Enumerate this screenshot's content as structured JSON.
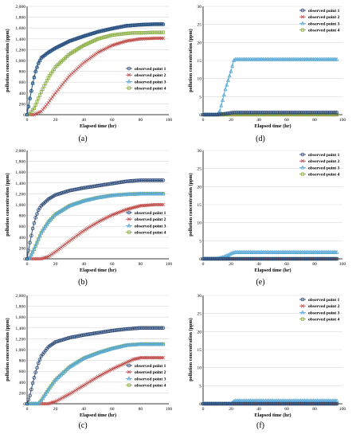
{
  "figure": {
    "shared": {
      "ylabel": "pollution concentration (ppm)",
      "xlabel": "Elapsed time (hr)",
      "legend": [
        "observed point 1",
        "observed point 2",
        "observed point 3",
        "observed point 4"
      ],
      "left_yticks": [
        "0",
        "200",
        "400",
        "600",
        "800",
        "1,000",
        "1,200",
        "1,400",
        "1,600",
        "1,800",
        "2,000"
      ],
      "right_yticks": [
        "0",
        "5",
        "10",
        "15",
        "20",
        "25",
        "30"
      ],
      "xticks": [
        "0",
        "20",
        "40",
        "60",
        "80",
        "100"
      ]
    },
    "colors": {
      "point1": "#2c4a78",
      "point2": "#c0504d",
      "point3": "#5aa9d6",
      "point4": "#8db04a",
      "axis": "#000000",
      "grid": "#d9d9d9"
    }
  },
  "chart_data": [
    {
      "panel": "(a)",
      "type": "line",
      "xlabel": "Elapsed time (hr)",
      "ylabel": "pollution concentration (ppm)",
      "xlim": [
        0,
        100
      ],
      "ylim": [
        0,
        2000
      ],
      "yticks": [
        0,
        200,
        400,
        600,
        800,
        1000,
        1200,
        1400,
        1600,
        1800,
        2000
      ],
      "grid": "horizontal",
      "legend_position": "right-middle",
      "series": [
        {
          "name": "observed point 1",
          "x": [
            0,
            2,
            4,
            6,
            8,
            10,
            15,
            20,
            30,
            40,
            50,
            60,
            70,
            80,
            90,
            96
          ],
          "values": [
            0,
            300,
            580,
            800,
            950,
            1050,
            1150,
            1230,
            1360,
            1450,
            1530,
            1590,
            1640,
            1660,
            1670,
            1670
          ]
        },
        {
          "name": "observed point 2",
          "x": [
            0,
            5,
            10,
            15,
            20,
            30,
            40,
            50,
            60,
            70,
            75,
            80,
            90,
            96
          ],
          "values": [
            0,
            0,
            60,
            220,
            400,
            720,
            960,
            1150,
            1280,
            1360,
            1380,
            1400,
            1410,
            1410
          ]
        },
        {
          "name": "observed point 3",
          "x": [
            0,
            2,
            4,
            6,
            8,
            10,
            15,
            20,
            30,
            40,
            50,
            60,
            70,
            80,
            90,
            96
          ],
          "values": [
            0,
            300,
            580,
            800,
            950,
            1050,
            1150,
            1230,
            1360,
            1450,
            1530,
            1590,
            1640,
            1660,
            1670,
            1670
          ]
        },
        {
          "name": "observed point 4",
          "x": [
            0,
            2,
            5,
            10,
            15,
            20,
            30,
            40,
            50,
            60,
            70,
            75,
            80,
            90,
            96
          ],
          "values": [
            0,
            20,
            120,
            420,
            680,
            880,
            1120,
            1280,
            1400,
            1470,
            1500,
            1510,
            1510,
            1520,
            1520
          ]
        }
      ]
    },
    {
      "panel": "(d)",
      "type": "line",
      "xlabel": "Elapsed time (hr)",
      "ylabel": "pollution concentration (ppm)",
      "xlim": [
        0,
        100
      ],
      "ylim": [
        0,
        30
      ],
      "yticks": [
        0,
        5,
        10,
        15,
        20,
        25,
        30
      ],
      "grid": "horizontal",
      "legend_position": "top-right",
      "series": [
        {
          "name": "observed point 1",
          "x": [
            0,
            10,
            15,
            20,
            22,
            25,
            96
          ],
          "values": [
            0,
            0,
            0.2,
            0.5,
            0.6,
            0.6,
            0.6
          ]
        },
        {
          "name": "observed point 2",
          "x": [
            0,
            96
          ],
          "values": [
            0,
            0
          ]
        },
        {
          "name": "observed point 3",
          "x": [
            0,
            10,
            12,
            14,
            16,
            18,
            20,
            22,
            23,
            30,
            50,
            70,
            90,
            96
          ],
          "values": [
            0,
            0,
            1,
            4,
            7,
            9.5,
            12,
            15,
            15.3,
            15.3,
            15.3,
            15.3,
            15.3,
            15.3
          ]
        },
        {
          "name": "observed point 4",
          "x": [
            0,
            96
          ],
          "values": [
            0,
            0
          ]
        }
      ]
    },
    {
      "panel": "(b)",
      "type": "line",
      "xlabel": "Elapsed time (hr)",
      "ylabel": "pollution concentration (ppm)",
      "xlim": [
        0,
        100
      ],
      "ylim": [
        0,
        2000
      ],
      "yticks": [
        0,
        200,
        400,
        600,
        800,
        1000,
        1200,
        1400,
        1600,
        1800,
        2000
      ],
      "grid": "horizontal",
      "legend_position": "right-middle",
      "series": [
        {
          "name": "observed point 1",
          "x": [
            0,
            2,
            4,
            6,
            8,
            10,
            15,
            20,
            30,
            40,
            50,
            60,
            70,
            80,
            90,
            96
          ],
          "values": [
            0,
            300,
            560,
            760,
            900,
            980,
            1100,
            1180,
            1260,
            1310,
            1350,
            1390,
            1430,
            1450,
            1450,
            1450
          ]
        },
        {
          "name": "observed point 2",
          "x": [
            0,
            10,
            15,
            20,
            30,
            40,
            50,
            60,
            70,
            80,
            90,
            96
          ],
          "values": [
            0,
            0,
            40,
            130,
            330,
            520,
            680,
            810,
            910,
            980,
            1000,
            1000
          ]
        },
        {
          "name": "observed point 3",
          "x": [
            0,
            2,
            5,
            10,
            15,
            20,
            30,
            40,
            50,
            60,
            70,
            80,
            90,
            96
          ],
          "values": [
            0,
            20,
            180,
            480,
            680,
            820,
            980,
            1070,
            1130,
            1170,
            1190,
            1200,
            1200,
            1200
          ]
        },
        {
          "name": "observed point 4",
          "x": [
            0,
            2,
            5,
            10,
            15,
            20,
            30,
            40,
            50,
            60,
            70,
            80,
            90,
            96
          ],
          "values": [
            0,
            20,
            180,
            480,
            680,
            820,
            980,
            1070,
            1130,
            1170,
            1190,
            1200,
            1200,
            1200
          ]
        }
      ]
    },
    {
      "panel": "(e)",
      "type": "line",
      "xlabel": "Elapsed time (hr)",
      "ylabel": "pollution concentration (ppm)",
      "xlim": [
        0,
        100
      ],
      "ylim": [
        0,
        30
      ],
      "yticks": [
        0,
        5,
        10,
        15,
        20,
        25,
        30
      ],
      "grid": "horizontal",
      "legend_position": "top-right",
      "series": [
        {
          "name": "observed point 1",
          "x": [
            0,
            96
          ],
          "values": [
            0,
            0
          ]
        },
        {
          "name": "observed point 2",
          "x": [
            0,
            96
          ],
          "values": [
            0,
            0
          ]
        },
        {
          "name": "observed point 3",
          "x": [
            0,
            10,
            14,
            18,
            21,
            23,
            30,
            50,
            70,
            90,
            96
          ],
          "values": [
            0,
            0,
            0.4,
            1.0,
            1.6,
            1.8,
            1.8,
            1.8,
            1.8,
            1.8,
            1.8
          ]
        },
        {
          "name": "observed point 4",
          "x": [
            0,
            96
          ],
          "values": [
            0,
            0
          ]
        }
      ]
    },
    {
      "panel": "(c)",
      "type": "line",
      "xlabel": "Elapsed time (hr)",
      "ylabel": "pollution concentration (ppm)",
      "xlim": [
        0,
        100
      ],
      "ylim": [
        0,
        2000
      ],
      "yticks": [
        0,
        200,
        400,
        600,
        800,
        1000,
        1200,
        1400,
        1600,
        1800,
        2000
      ],
      "grid": "horizontal",
      "legend_position": "bottom-right",
      "series": [
        {
          "name": "observed point 1",
          "x": [
            0,
            2,
            4,
            6,
            8,
            10,
            15,
            20,
            30,
            40,
            50,
            60,
            70,
            80,
            90,
            96
          ],
          "values": [
            0,
            150,
            380,
            580,
            750,
            880,
            1050,
            1140,
            1220,
            1270,
            1310,
            1350,
            1380,
            1400,
            1400,
            1400
          ]
        },
        {
          "name": "observed point 2",
          "x": [
            0,
            15,
            20,
            30,
            40,
            50,
            60,
            70,
            75,
            80,
            90,
            96
          ],
          "values": [
            0,
            0,
            40,
            180,
            340,
            500,
            640,
            760,
            820,
            850,
            850,
            850
          ]
        },
        {
          "name": "observed point 3",
          "x": [
            0,
            8,
            10,
            15,
            20,
            30,
            40,
            50,
            60,
            70,
            80,
            90,
            96
          ],
          "values": [
            0,
            0,
            60,
            260,
            440,
            680,
            840,
            940,
            1020,
            1080,
            1100,
            1100,
            1100
          ]
        },
        {
          "name": "observed point 4",
          "x": [
            0,
            8,
            10,
            15,
            20,
            30,
            40,
            50,
            60,
            70,
            80,
            90,
            96
          ],
          "values": [
            0,
            0,
            60,
            260,
            440,
            680,
            840,
            940,
            1020,
            1080,
            1100,
            1100,
            1100
          ]
        }
      ]
    },
    {
      "panel": "(f)",
      "type": "line",
      "xlabel": "Elapsed time (hr)",
      "ylabel": "pollution concentration (ppm)",
      "xlim": [
        0,
        100
      ],
      "ylim": [
        0,
        30
      ],
      "yticks": [
        0,
        5,
        10,
        15,
        20,
        25,
        30
      ],
      "grid": "horizontal",
      "legend_position": "top-right",
      "series": [
        {
          "name": "observed point 1",
          "x": [
            0,
            96
          ],
          "values": [
            0,
            0
          ]
        },
        {
          "name": "observed point 2",
          "x": [
            0,
            96
          ],
          "values": [
            0,
            0
          ]
        },
        {
          "name": "observed point 3",
          "x": [
            0,
            20,
            22,
            23,
            30,
            50,
            70,
            90,
            96
          ],
          "values": [
            0,
            0,
            0.6,
            0.8,
            0.8,
            0.8,
            0.8,
            0.8,
            0.8
          ]
        },
        {
          "name": "observed point 4",
          "x": [
            0,
            96
          ],
          "values": [
            0,
            0
          ]
        }
      ]
    }
  ]
}
